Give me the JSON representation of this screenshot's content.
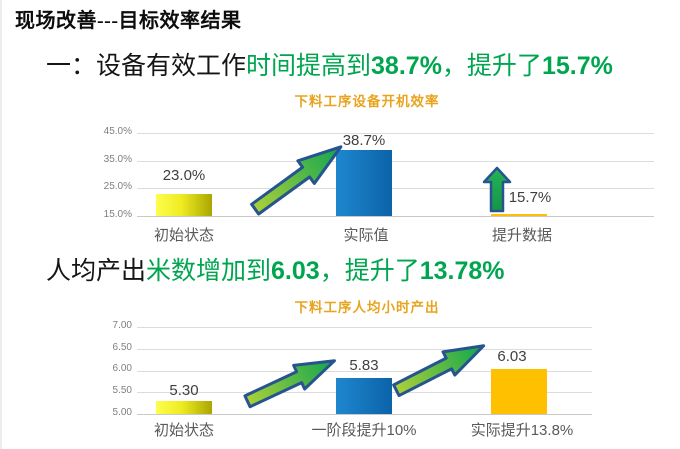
{
  "slide": {
    "title": "现场改善---目标效率结果"
  },
  "headline1": {
    "prefix": "一：设备有效工作",
    "green1": "时间提高到",
    "num1": "38.7%",
    "green2": "，提升了",
    "num2": "15.7%"
  },
  "headline2": {
    "prefix": "人均产出",
    "green1": "米数增加到",
    "num1": "6.03",
    "green2": "，提升了",
    "num2": "13.78%"
  },
  "chart1": {
    "title": "下料工序设备开机效率",
    "y_labels": [
      "45.0%",
      "35.0%",
      "25.0%",
      "15.0%"
    ],
    "bars": [
      {
        "category": "初始状态",
        "value_label": "23.0%"
      },
      {
        "category": "实际值",
        "value_label": "38.7%"
      },
      {
        "category": "提升数据",
        "value_label": "15.7%"
      }
    ]
  },
  "chart2": {
    "title": "下料工序人均小时产出",
    "y_labels": [
      "7.00",
      "6.50",
      "6.00",
      "5.50",
      "5.00"
    ],
    "bars": [
      {
        "category": "初始状态",
        "value_label": "5.30"
      },
      {
        "category": "一阶段提升10%",
        "value_label": "5.83"
      },
      {
        "category": "实际提升13.8%",
        "value_label": "6.03"
      }
    ]
  },
  "colors": {
    "headline_green": "#00A64F",
    "chart_title_orange": "#E9A41F",
    "bar_yellow": "#EFEC22",
    "bar_blue": "#0C63A8",
    "bar_orange": "#FFC000",
    "arrow_green": "#12A150",
    "arrow_outline_navy": "#27538E"
  },
  "chart_data": [
    {
      "type": "bar",
      "title": "下料工序设备开机效率",
      "categories": [
        "初始状态",
        "实际值",
        "提升数据"
      ],
      "values": [
        23.0,
        38.7,
        15.7
      ],
      "unit": "%",
      "ylim": [
        15.0,
        45.0
      ],
      "yticks": [
        "15.0%",
        "25.0%",
        "35.0%",
        "45.0%"
      ],
      "grid": true,
      "legend": "none",
      "bar_colors": [
        "yellow-gradient",
        "blue",
        "orange"
      ],
      "annotations": [
        "green diagonal growth arrow from bar 初始状态 to bar 实际值",
        "green vertical up arrow above bar 提升数据"
      ]
    },
    {
      "type": "bar",
      "title": "下料工序人均小时产出",
      "categories": [
        "初始状态",
        "一阶段提升10%",
        "实际提升13.8%"
      ],
      "values": [
        5.3,
        5.83,
        6.03
      ],
      "unit": "",
      "ylim": [
        5.0,
        7.0
      ],
      "yticks": [
        "5.00",
        "5.50",
        "6.00",
        "6.50",
        "7.00"
      ],
      "grid": true,
      "legend": "none",
      "bar_colors": [
        "yellow-gradient",
        "blue",
        "orange"
      ],
      "annotations": [
        "green diagonal growth arrow from bar 初始状态 to bar 一阶段提升10%",
        "green diagonal growth arrow from bar 一阶段提升10% to bar 实际提升13.8%"
      ]
    }
  ]
}
